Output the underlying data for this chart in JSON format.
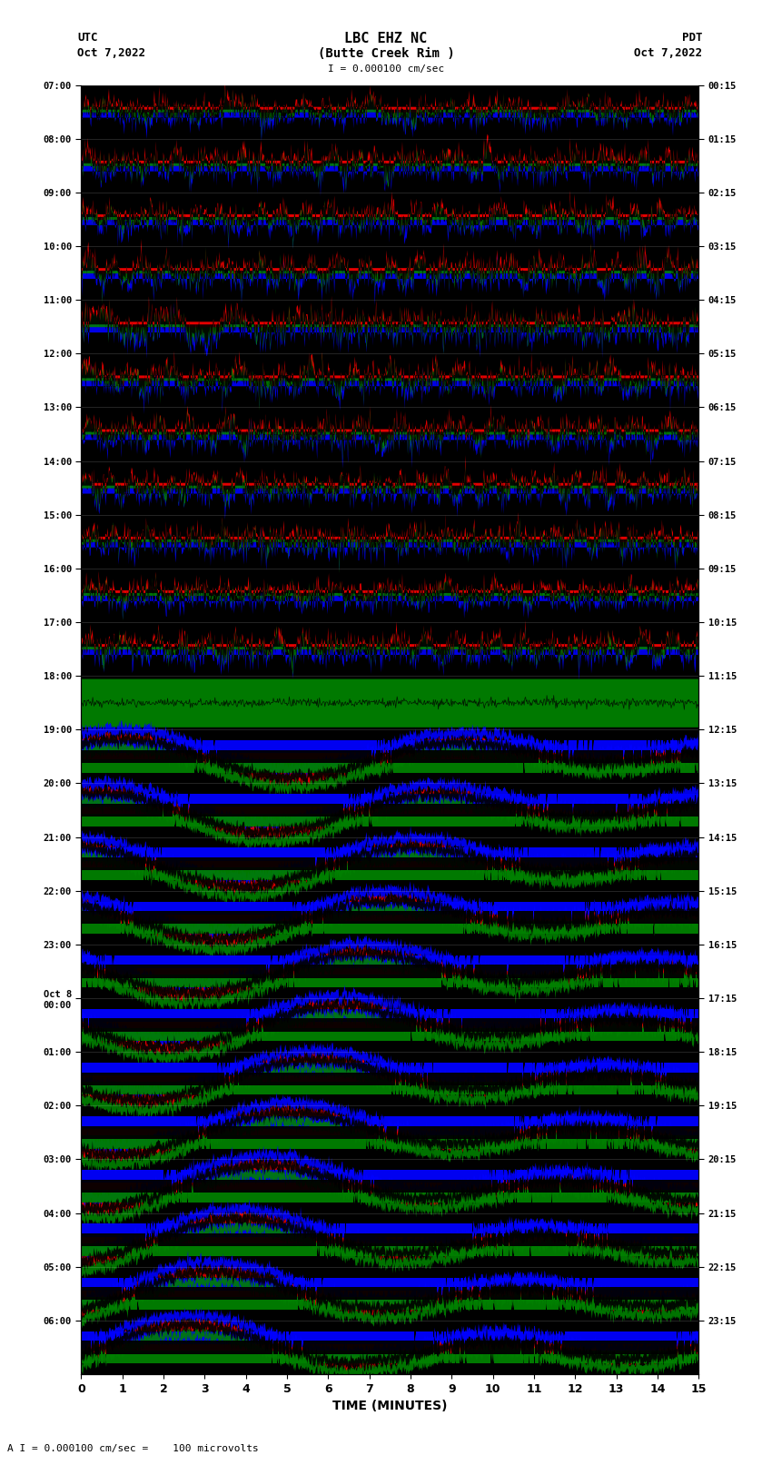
{
  "title_line1": "LBC EHZ NC",
  "title_line2": "(Butte Creek Rim )",
  "scale_bar": "I = 0.000100 cm/sec",
  "left_label": "UTC",
  "left_date": "Oct 7,2022",
  "right_label": "PDT",
  "right_date": "Oct 7,2022",
  "xlabel": "TIME (MINUTES)",
  "bottom_note": "A I = 0.000100 cm/sec =    100 microvolts",
  "xlim": [
    0,
    15
  ],
  "ytick_left": [
    "07:00",
    "08:00",
    "09:00",
    "10:00",
    "11:00",
    "12:00",
    "13:00",
    "14:00",
    "15:00",
    "16:00",
    "17:00",
    "18:00",
    "19:00",
    "20:00",
    "21:00",
    "22:00",
    "23:00",
    "Oct 8\n00:00",
    "01:00",
    "02:00",
    "03:00",
    "04:00",
    "05:00",
    "06:00"
  ],
  "ytick_right": [
    "00:15",
    "01:15",
    "02:15",
    "03:15",
    "04:15",
    "05:15",
    "06:15",
    "07:15",
    "08:15",
    "09:15",
    "10:15",
    "11:15",
    "12:15",
    "13:15",
    "14:15",
    "15:15",
    "16:15",
    "17:15",
    "18:15",
    "19:15",
    "20:15",
    "21:15",
    "22:15",
    "23:15"
  ],
  "bg_color": "white",
  "fig_width": 8.5,
  "fig_height": 16.13
}
